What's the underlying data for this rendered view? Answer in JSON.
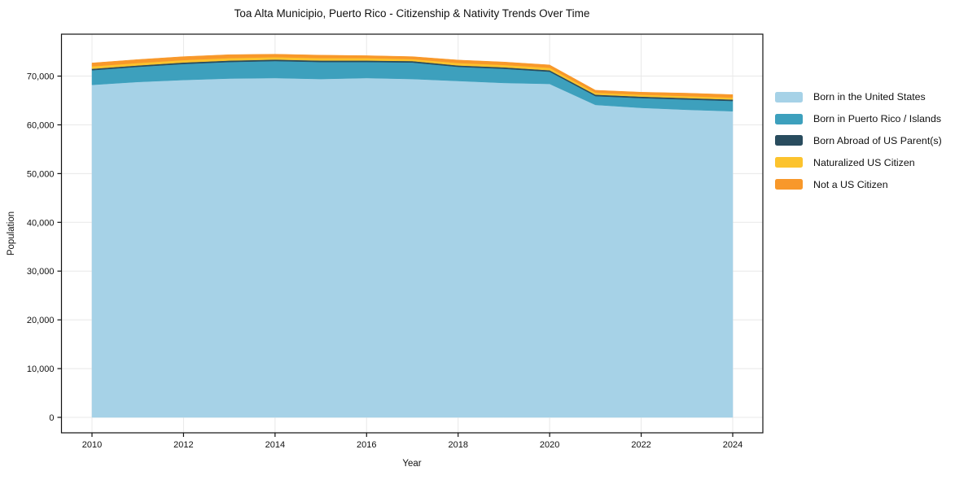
{
  "chart_data": {
    "type": "area",
    "stacked": true,
    "title": "Toa Alta Municipio, Puerto Rico - Citizenship & Nativity Trends Over Time",
    "xlabel": "Year",
    "ylabel": "Population",
    "x": [
      2010,
      2011,
      2012,
      2013,
      2014,
      2015,
      2016,
      2017,
      2018,
      2019,
      2020,
      2021,
      2022,
      2023,
      2024
    ],
    "series": [
      {
        "name": "Born in the United States",
        "color": "#a6d2e7",
        "values": [
          68200,
          68800,
          69200,
          69500,
          69600,
          69400,
          69600,
          69400,
          69000,
          68600,
          68400,
          64100,
          63500,
          63100,
          62800
        ]
      },
      {
        "name": "Born in Puerto Rico / Islands",
        "color": "#3da0bd",
        "values": [
          3000,
          3100,
          3300,
          3400,
          3500,
          3500,
          3300,
          3400,
          2900,
          2900,
          2500,
          1800,
          2000,
          2100,
          2100
        ]
      },
      {
        "name": "Born Abroad of US Parent(s)",
        "color": "#294c5e",
        "values": [
          300,
          300,
          300,
          300,
          300,
          300,
          300,
          300,
          300,
          300,
          300,
          300,
          300,
          300,
          300
        ]
      },
      {
        "name": "Naturalized US Citizen",
        "color": "#fcc32d",
        "values": [
          500,
          500,
          500,
          500,
          500,
          500,
          500,
          400,
          500,
          500,
          500,
          400,
          400,
          400,
          400
        ]
      },
      {
        "name": "Not a US Citizen",
        "color": "#f8982a",
        "values": [
          700,
          700,
          700,
          700,
          600,
          600,
          500,
          500,
          600,
          600,
          600,
          500,
          500,
          600,
          600
        ]
      }
    ],
    "xticks": [
      2010,
      2012,
      2014,
      2016,
      2018,
      2020,
      2022,
      2024
    ],
    "yticks": [
      0,
      10000,
      20000,
      30000,
      40000,
      50000,
      60000,
      70000
    ],
    "ylim": [
      0,
      78600
    ],
    "grid": true,
    "legend_position": "right-outside",
    "colors": {
      "grid": "#e8e8e8",
      "spine": "#111111",
      "text": "#111111"
    }
  }
}
